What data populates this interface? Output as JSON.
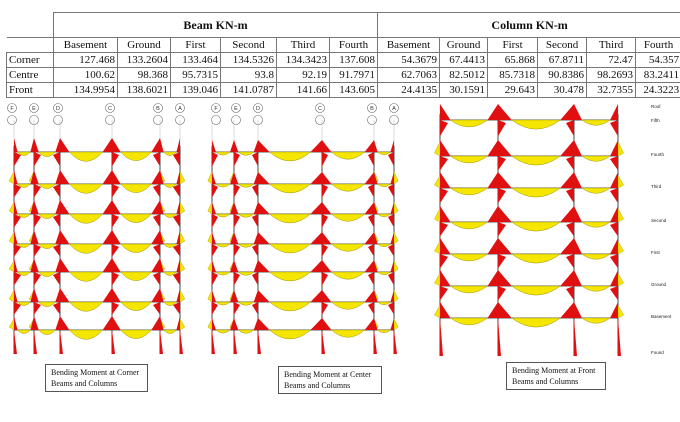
{
  "table": {
    "group_headers": {
      "beam": "Beam KN-m",
      "column": "Column KN-m"
    },
    "columns": [
      "Basement",
      "Ground",
      "First",
      "Second",
      "Third",
      "Fourth"
    ],
    "rows": [
      {
        "label": "Corner",
        "beam": [
          "127.468",
          "133.2604",
          "133.464",
          "134.5326",
          "134.3423",
          "137.608"
        ],
        "column": [
          "54.3679",
          "67.4413",
          "65.868",
          "67.8711",
          "72.47",
          "54.357"
        ]
      },
      {
        "label": "Centre",
        "beam": [
          "100.62",
          "98.368",
          "95.7315",
          "93.8",
          "92.19",
          "91.7971"
        ],
        "column": [
          "62.7063",
          "82.5012",
          "85.7318",
          "90.8386",
          "98.2693",
          "83.2411"
        ]
      },
      {
        "label": "Front",
        "beam": [
          "134.9954",
          "138.6021",
          "139.046",
          "141.0787",
          "141.66",
          "143.605"
        ],
        "column": [
          "24.4135",
          "30.1591",
          "29.643",
          "30.478",
          "32.7355",
          "24.3223"
        ]
      }
    ]
  },
  "diagrams": {
    "colors": {
      "positive": "#f4e600",
      "negative": "#e01010",
      "frame": "#222222",
      "grid": "#b8b8b8"
    },
    "grid_bubbles_left": [
      "F",
      "E",
      "D",
      "C",
      "B",
      "A"
    ],
    "grid_bubbles_right": [
      "F",
      "E",
      "D",
      "C",
      "B",
      "A"
    ],
    "story_labels": [
      "Roof",
      "Fifth",
      "Fourth",
      "Third",
      "Second",
      "First",
      "Ground",
      "Basement",
      "Found"
    ],
    "captions": {
      "corner": {
        "line1": "Bending Moment at Corner",
        "line2": "Beams and Columns"
      },
      "center": {
        "line1": "Bending Moment at Center",
        "line2": "Beams and Columns"
      },
      "front": {
        "line1": "Bending Moment at Front",
        "line2": "Beams and Columns"
      }
    }
  }
}
